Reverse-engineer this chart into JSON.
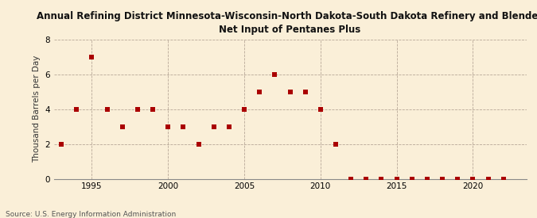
{
  "title_line1": "Annual Refining District Minnesota-Wisconsin-North Dakota-South Dakota Refinery and Blender",
  "title_line2": "Net Input of Pentanes Plus",
  "ylabel": "Thousand Barrels per Day",
  "source": "Source: U.S. Energy Information Administration",
  "background_color": "#faefd8",
  "plot_background_color": "#faefd8",
  "marker_color": "#aa0000",
  "marker_size": 18,
  "xlim": [
    1992.5,
    2023.5
  ],
  "ylim": [
    0,
    8
  ],
  "yticks": [
    0,
    2,
    4,
    6,
    8
  ],
  "xticks": [
    1995,
    2000,
    2005,
    2010,
    2015,
    2020
  ],
  "years": [
    1993,
    1994,
    1995,
    1996,
    1997,
    1998,
    1999,
    2000,
    2001,
    2002,
    2003,
    2004,
    2005,
    2006,
    2007,
    2008,
    2009,
    2010,
    2011,
    2012,
    2013,
    2014,
    2015,
    2016,
    2017,
    2018,
    2019,
    2020,
    2021,
    2022
  ],
  "values": [
    2,
    4,
    7,
    4,
    3,
    4,
    4,
    3,
    3,
    2,
    3,
    3,
    4,
    5,
    6,
    5,
    5,
    4,
    2,
    0,
    0,
    0,
    0,
    0,
    0,
    0,
    0,
    0,
    0,
    0
  ]
}
